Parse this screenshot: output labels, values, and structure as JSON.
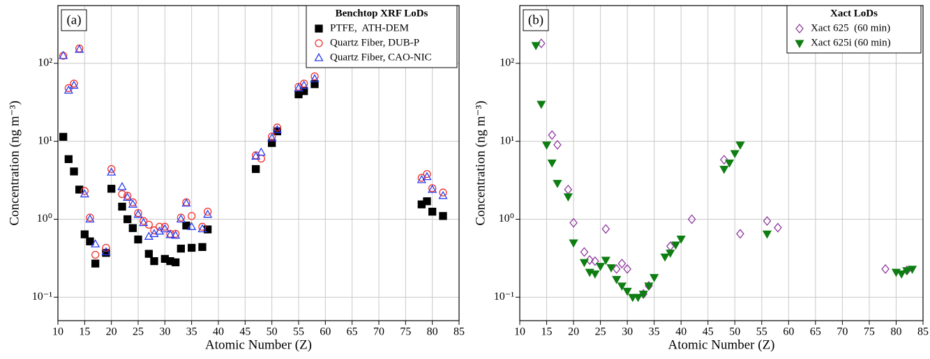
{
  "chart_data": [
    {
      "type": "scatter",
      "panel_label": "(a)",
      "legend_title": "Benchtop XRF LoDs",
      "x_label": "Atomic Number (Z)",
      "y_label": "Concentration (ng m⁻³)",
      "xlim": [
        10,
        85
      ],
      "xticks": [
        10,
        15,
        20,
        25,
        30,
        35,
        40,
        45,
        50,
        55,
        60,
        65,
        70,
        75,
        80,
        85
      ],
      "ylim": [
        0.05,
        550
      ],
      "log_y": true,
      "grid": true,
      "legend": "upper right",
      "yticks": [
        {
          "value": 0.1,
          "label": "10⁻¹"
        },
        {
          "value": 1,
          "label": "10⁰"
        },
        {
          "value": 10,
          "label": "10¹"
        },
        {
          "value": 100,
          "label": "10²"
        }
      ],
      "series": [
        {
          "name": "PTFE,  ATH-DEM",
          "color": "#000000",
          "marker": "square",
          "filled": true,
          "x": [
            11,
            12,
            13,
            14,
            15,
            16,
            17,
            19,
            20,
            22,
            23,
            24,
            25,
            27,
            28,
            30,
            31,
            32,
            33,
            34,
            35,
            37,
            38,
            47,
            50,
            51,
            55,
            56,
            58,
            78,
            79,
            80,
            82
          ],
          "values": [
            11.4,
            5.9,
            4.1,
            2.4,
            0.64,
            0.52,
            0.27,
            0.37,
            2.46,
            1.45,
            1.0,
            0.77,
            0.55,
            0.36,
            0.29,
            0.31,
            0.29,
            0.28,
            0.42,
            0.83,
            0.43,
            0.44,
            0.74,
            4.4,
            9.5,
            13.4,
            40,
            44,
            54,
            1.55,
            1.7,
            1.25,
            1.1
          ]
        },
        {
          "name": "Quartz Fiber, DUB-P",
          "color": "#f0302a",
          "marker": "circle",
          "filled": false,
          "x": [
            11,
            12,
            13,
            14,
            15,
            16,
            17,
            19,
            20,
            22,
            23,
            24,
            25,
            26,
            27,
            28,
            29,
            30,
            31,
            32,
            33,
            34,
            35,
            37,
            38,
            47,
            48,
            50,
            51,
            55,
            56,
            58,
            78,
            79,
            80,
            82
          ],
          "values": [
            125,
            48,
            55,
            155,
            2.3,
            1.05,
            0.35,
            0.43,
            4.4,
            2.1,
            2.0,
            1.65,
            1.2,
            0.95,
            0.85,
            0.72,
            0.8,
            0.8,
            0.65,
            0.65,
            1.05,
            1.65,
            1.1,
            0.8,
            1.25,
            6.6,
            6.0,
            11.5,
            15,
            50,
            55,
            68,
            3.4,
            3.8,
            2.5,
            2.2
          ]
        },
        {
          "name": "Quartz Fiber, CAO-NIC",
          "color": "#2a3cf0",
          "marker": "triangle",
          "filled": false,
          "x": [
            11,
            12,
            13,
            14,
            15,
            16,
            17,
            19,
            20,
            22,
            23,
            24,
            25,
            26,
            27,
            28,
            29,
            30,
            31,
            32,
            33,
            34,
            35,
            37,
            38,
            47,
            48,
            50,
            51,
            55,
            56,
            58,
            78,
            79,
            80,
            82
          ],
          "values": [
            125,
            45,
            52,
            150,
            2.1,
            1.0,
            0.48,
            0.38,
            4.0,
            2.6,
            1.9,
            1.55,
            1.15,
            0.9,
            0.6,
            0.65,
            0.7,
            0.75,
            0.63,
            0.62,
            1.0,
            1.6,
            0.8,
            0.75,
            1.15,
            6.4,
            7.2,
            11,
            14,
            48,
            52,
            63,
            3.2,
            3.5,
            2.4,
            2.0
          ]
        }
      ]
    },
    {
      "type": "scatter",
      "panel_label": "(b)",
      "legend_title": "Xact LoDs",
      "x_label": "Atomic Number (Z)",
      "y_label": "Concentration (ng m⁻³)",
      "xlim": [
        10,
        85
      ],
      "xticks": [
        10,
        15,
        20,
        25,
        30,
        35,
        40,
        45,
        50,
        55,
        60,
        65,
        70,
        75,
        80,
        85
      ],
      "ylim": [
        0.05,
        550
      ],
      "log_y": true,
      "grid": true,
      "legend": "upper right",
      "yticks": [
        {
          "value": 0.1,
          "label": "10⁻¹"
        },
        {
          "value": 1,
          "label": "10⁰"
        },
        {
          "value": 10,
          "label": "10¹"
        },
        {
          "value": 100,
          "label": "10²"
        }
      ],
      "series": [
        {
          "name": "Xact 625  (60 min)",
          "color": "#8e3a9e",
          "marker": "diamond",
          "filled": false,
          "x": [
            14,
            16,
            17,
            19,
            20,
            22,
            23,
            24,
            26,
            28,
            29,
            30,
            33,
            34,
            38,
            42,
            48,
            51,
            56,
            58,
            78,
            82
          ],
          "values": [
            180,
            12,
            9,
            2.4,
            0.9,
            0.38,
            0.3,
            0.29,
            0.75,
            0.23,
            0.27,
            0.23,
            0.11,
            0.14,
            0.45,
            1.0,
            5.8,
            0.65,
            0.95,
            0.78,
            0.23,
            0.22
          ]
        },
        {
          "name": "Xact 625i (60 min)",
          "color": "#0e7e12",
          "marker": "triangle-down",
          "filled": true,
          "x": [
            13,
            14,
            15,
            16,
            17,
            19,
            20,
            22,
            23,
            24,
            25,
            26,
            27,
            28,
            29,
            30,
            31,
            32,
            33,
            34,
            35,
            37,
            38,
            39,
            40,
            48,
            49,
            50,
            51,
            56,
            80,
            81,
            82,
            83
          ],
          "values": [
            170,
            30,
            9,
            5.3,
            2.9,
            1.95,
            0.5,
            0.28,
            0.21,
            0.2,
            0.25,
            0.3,
            0.24,
            0.17,
            0.14,
            0.12,
            0.1,
            0.1,
            0.11,
            0.14,
            0.18,
            0.33,
            0.37,
            0.47,
            0.56,
            4.4,
            5.3,
            7.0,
            9.0,
            0.65,
            0.21,
            0.2,
            0.22,
            0.23
          ]
        }
      ]
    }
  ]
}
